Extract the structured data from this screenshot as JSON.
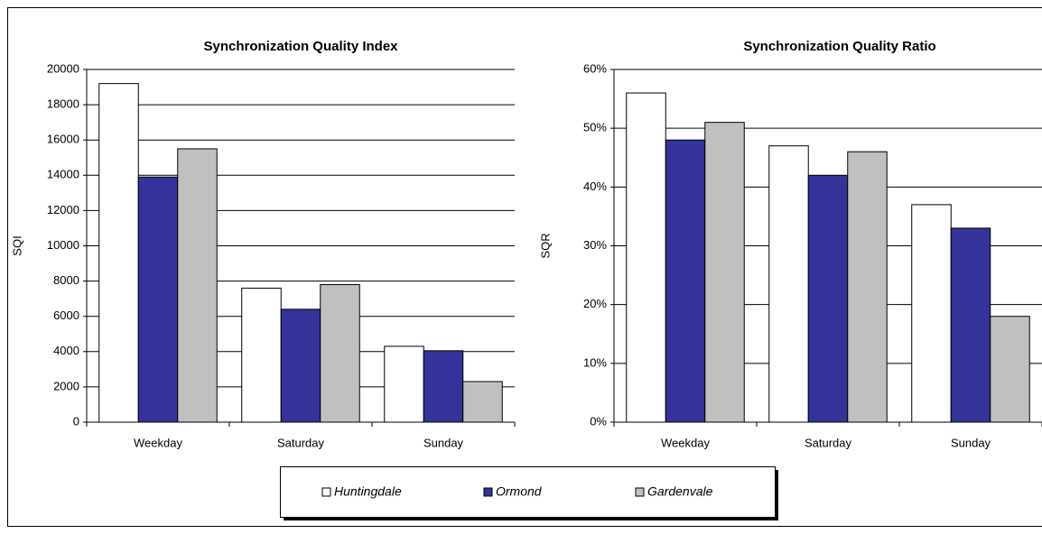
{
  "chart_data": [
    {
      "type": "bar",
      "title": "Synchronization Quality Index",
      "y_label": "SQI",
      "categories": [
        "Weekday",
        "Saturday",
        "Sunday"
      ],
      "series": [
        {
          "name": "Huntingdale",
          "color": "#ffffff",
          "values": [
            19200,
            7600,
            4300
          ]
        },
        {
          "name": "Ormond",
          "color": "#333399",
          "values": [
            13900,
            6400,
            4050
          ]
        },
        {
          "name": "Gardenvale",
          "color": "#c0c0c0",
          "values": [
            15500,
            7800,
            2300
          ]
        }
      ],
      "ylim": [
        0,
        20000
      ],
      "yticks": [
        0,
        2000,
        4000,
        6000,
        8000,
        10000,
        12000,
        14000,
        16000,
        18000,
        20000
      ],
      "grid": true
    },
    {
      "type": "bar",
      "title": "Synchronization Quality Ratio",
      "y_label": "SQR",
      "categories": [
        "Weekday",
        "Saturday",
        "Sunday"
      ],
      "series": [
        {
          "name": "Huntingdale",
          "color": "#ffffff",
          "values": [
            56,
            47,
            37
          ]
        },
        {
          "name": "Ormond",
          "color": "#333399",
          "values": [
            48,
            42,
            33
          ]
        },
        {
          "name": "Gardenvale",
          "color": "#c0c0c0",
          "values": [
            51,
            46,
            18
          ]
        }
      ],
      "ylim": [
        0,
        60
      ],
      "yticks": [
        {
          "value": 0,
          "label": "0%"
        },
        {
          "value": 10,
          "label": "10%"
        },
        {
          "value": 20,
          "label": "20%"
        },
        {
          "value": 30,
          "label": "30%"
        },
        {
          "value": 40,
          "label": "40%"
        },
        {
          "value": 50,
          "label": "50%"
        },
        {
          "value": 60,
          "label": "60%"
        }
      ],
      "grid": true
    }
  ]
}
